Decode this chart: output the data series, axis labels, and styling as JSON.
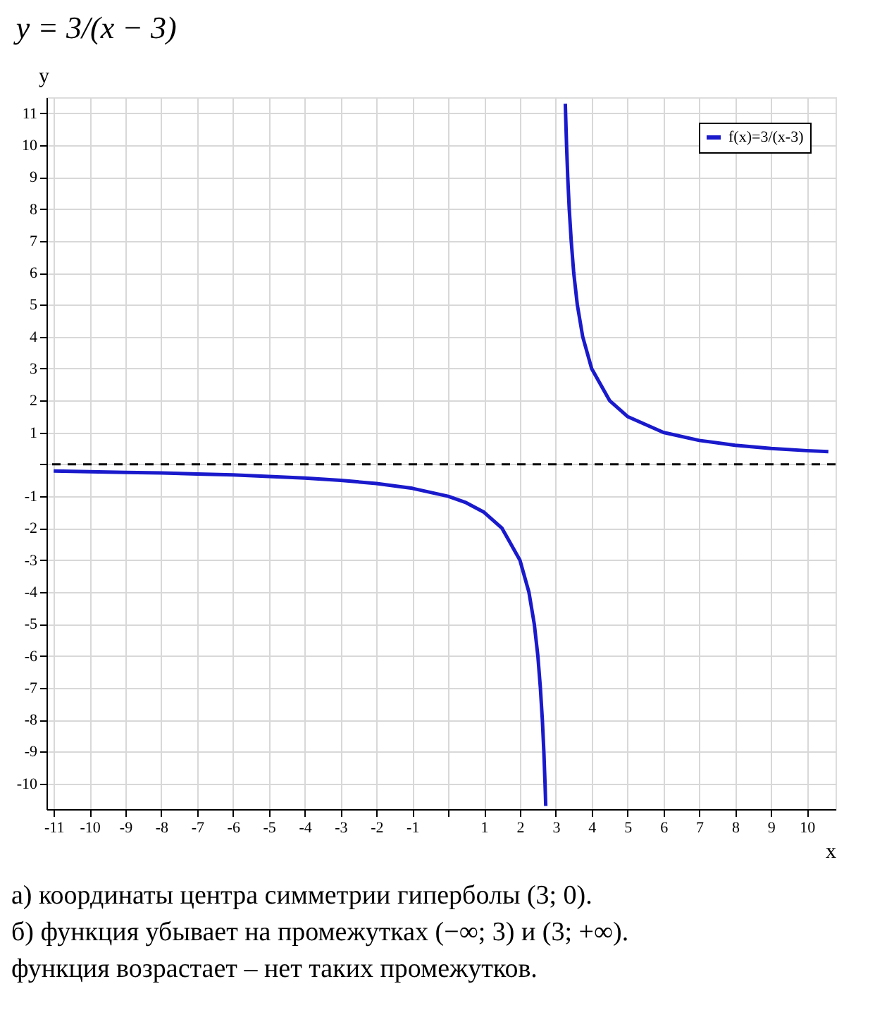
{
  "chart_data": {
    "type": "line",
    "title": "y = 3/(x − 3)",
    "xlabel": "x",
    "ylabel": "y",
    "xlim": [
      -11.2,
      10.8
    ],
    "ylim": [
      -10.8,
      11.5
    ],
    "xticks": [
      -11,
      -10,
      -9,
      -8,
      -7,
      -6,
      -5,
      -4,
      -3,
      -2,
      -1,
      {
        "value": 0,
        "label": null
      },
      1,
      2,
      3,
      4,
      5,
      6,
      7,
      8,
      9,
      10
    ],
    "yticks": [
      -10,
      -9,
      -8,
      -7,
      -6,
      -5,
      -4,
      -3,
      -2,
      -1,
      {
        "value": 0,
        "label": null
      },
      1,
      2,
      3,
      4,
      5,
      6,
      7,
      8,
      9,
      10,
      11
    ],
    "grid": true,
    "legend": "top right",
    "line_style": "solid",
    "marker": "none",
    "series": [
      {
        "name": "f(x)=3/(x-3)",
        "color": "#1a1acc",
        "x": [
          -11,
          -10,
          -9,
          -8,
          -7,
          -6,
          -5,
          -4,
          -3,
          -2,
          -1,
          0,
          0.5,
          1,
          1.5,
          2,
          2.25,
          2.4,
          2.5,
          2.57,
          2.625,
          2.667,
          2.7,
          2.72,
          3,
          3.265,
          3.3,
          3.333,
          3.375,
          3.43,
          3.5,
          3.6,
          3.75,
          4,
          4.5,
          5,
          6,
          7,
          8,
          9,
          10,
          10.6
        ],
        "values": [
          -0.21,
          -0.23,
          -0.25,
          -0.27,
          -0.3,
          -0.33,
          -0.38,
          -0.43,
          -0.5,
          -0.6,
          -0.75,
          -1,
          -1.2,
          -1.5,
          -2,
          -3,
          -4,
          -5,
          -6,
          -7,
          -8,
          -9,
          -10,
          -10.7,
          null,
          11.3,
          10,
          9,
          8,
          7,
          6,
          5,
          4,
          3,
          2,
          1.5,
          1,
          0.75,
          0.6,
          0.5,
          0.43,
          0.4
        ]
      }
    ],
    "ref_lines": [
      {
        "axis": "y",
        "value": 0,
        "line_style": "dashed",
        "color": "#000000"
      }
    ],
    "annotations": [
      "а) координаты центра симметрии гиперболы (3; 0).",
      "б) функция убывает на промежутках (−∞; 3) и (3; +∞).",
      "функция возрастает – нет таких промежутков."
    ]
  }
}
